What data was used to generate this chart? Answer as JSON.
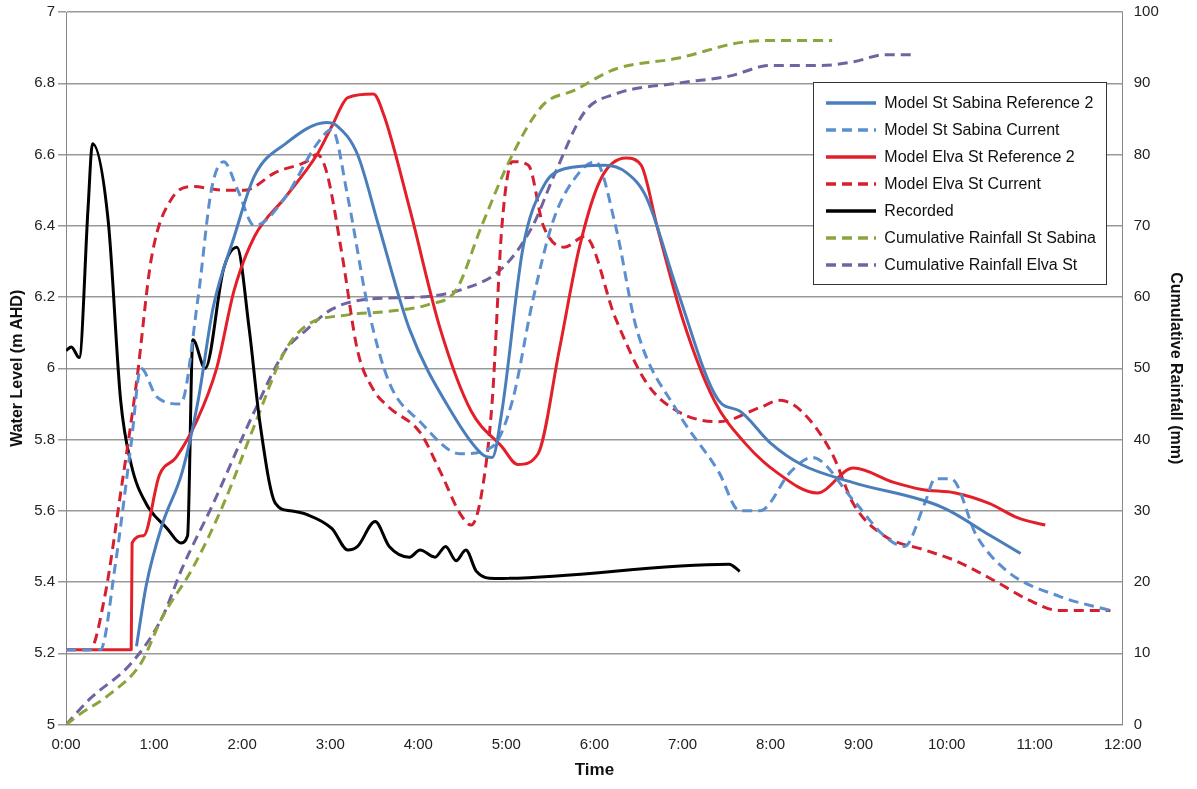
{
  "chart_data": {
    "type": "line",
    "xlabel": "Time",
    "ylabel": "Water Level (m AHD)",
    "y2label": "Cumulative Rainfall (mm)",
    "xlim": [
      0,
      12
    ],
    "xticks": [
      {
        "value": 0,
        "label": "0:00"
      },
      {
        "value": 1,
        "label": "1:00"
      },
      {
        "value": 2,
        "label": "2:00"
      },
      {
        "value": 3,
        "label": "3:00"
      },
      {
        "value": 4,
        "label": "4:00"
      },
      {
        "value": 5,
        "label": "5:00"
      },
      {
        "value": 6,
        "label": "6:00"
      },
      {
        "value": 7,
        "label": "7:00"
      },
      {
        "value": 8,
        "label": "8:00"
      },
      {
        "value": 9,
        "label": "9:00"
      },
      {
        "value": 10,
        "label": "10:00"
      },
      {
        "value": 11,
        "label": "11:00"
      },
      {
        "value": 12,
        "label": "12:00"
      }
    ],
    "ylim": [
      5,
      7
    ],
    "yticks": [
      5,
      5.2,
      5.4,
      5.6,
      5.8,
      6,
      6.2,
      6.4,
      6.6,
      6.8,
      7
    ],
    "y2lim": [
      0,
      100
    ],
    "y2ticks": [
      0,
      10,
      20,
      30,
      40,
      50,
      60,
      70,
      80,
      90,
      100
    ],
    "grid": "y",
    "legend": "top right",
    "marker": "none",
    "series": [
      {
        "name": "Model St Sabina Reference 2",
        "color": "#4a7ebb",
        "line_style": "solid",
        "x": [
          0.8,
          0.91,
          1.09,
          1.32,
          1.5,
          1.67,
          1.91,
          2.14,
          2.49,
          2.96,
          3.08,
          3.31,
          3.55,
          3.9,
          4.37,
          4.72,
          4.84,
          4.95,
          5.19,
          5.42,
          5.66,
          6.12,
          6.36,
          6.59,
          6.94,
          7.41,
          7.65,
          8.0,
          8.35,
          8.93,
          9.95,
          10.5,
          10.84
        ],
        "values": [
          5.22,
          5.39,
          5.56,
          5.71,
          5.91,
          6.17,
          6.37,
          6.54,
          6.63,
          6.69,
          6.68,
          6.6,
          6.4,
          6.11,
          5.88,
          5.76,
          5.75,
          5.88,
          6.34,
          6.51,
          6.56,
          6.57,
          6.55,
          6.48,
          6.22,
          5.91,
          5.88,
          5.79,
          5.73,
          5.68,
          5.61,
          5.53,
          5.48
        ]
      },
      {
        "name": "Model St Sabina Current",
        "color": "#5b8fd0",
        "line_style": "dashed",
        "x": [
          0,
          0.39,
          0.56,
          0.74,
          0.85,
          1.03,
          1.3,
          1.5,
          1.65,
          1.79,
          1.95,
          2.14,
          2.49,
          2.85,
          3.02,
          3.2,
          3.43,
          3.67,
          4.02,
          4.48,
          4.84,
          5.07,
          5.3,
          5.54,
          5.83,
          6.01,
          6.24,
          6.48,
          6.94,
          7.41,
          7.65,
          7.88,
          8.23,
          8.47,
          8.94,
          9.29,
          9.52,
          9.75,
          9.87,
          10.05,
          10.34,
          10.69,
          11.28,
          11.86
        ],
        "values": [
          5.21,
          5.21,
          5.45,
          5.79,
          6.0,
          5.92,
          5.9,
          6.2,
          6.5,
          6.58,
          6.5,
          6.4,
          6.48,
          6.63,
          6.67,
          6.48,
          6.17,
          5.96,
          5.85,
          5.76,
          5.78,
          5.91,
          6.19,
          6.42,
          6.55,
          6.58,
          6.4,
          6.11,
          5.88,
          5.71,
          5.6,
          5.6,
          5.71,
          5.75,
          5.63,
          5.53,
          5.5,
          5.62,
          5.69,
          5.69,
          5.53,
          5.43,
          5.36,
          5.32
        ]
      },
      {
        "name": "Model Elva St Reference 2",
        "color": "#e3202a",
        "line_style": "solid",
        "x": [
          0,
          0.74,
          0.75,
          0.88,
          1.06,
          1.25,
          1.48,
          1.71,
          1.91,
          2.14,
          2.49,
          2.85,
          3.02,
          3.2,
          3.49,
          3.61,
          3.9,
          4.25,
          4.6,
          4.95,
          5.13,
          5.36,
          5.6,
          5.83,
          6.07,
          6.36,
          6.53,
          6.71,
          7.0,
          7.36,
          7.71,
          8.06,
          8.53,
          8.94,
          9.4,
          9.72,
          10.1,
          10.49,
          10.81,
          11.12
        ],
        "values": [
          5.21,
          5.21,
          5.51,
          5.53,
          5.7,
          5.75,
          5.85,
          6.0,
          6.22,
          6.37,
          6.48,
          6.6,
          6.68,
          6.76,
          6.77,
          6.71,
          6.45,
          6.11,
          5.88,
          5.78,
          5.73,
          5.76,
          6.05,
          6.34,
          6.53,
          6.59,
          6.57,
          6.4,
          6.14,
          5.91,
          5.79,
          5.71,
          5.65,
          5.72,
          5.68,
          5.66,
          5.65,
          5.62,
          5.58,
          5.56
        ]
      },
      {
        "name": "Model Elva St Current",
        "color": "#d42030",
        "line_style": "dashed",
        "x": [
          0,
          0.27,
          0.44,
          0.62,
          0.8,
          0.97,
          1.21,
          1.44,
          1.79,
          2.03,
          2.38,
          2.73,
          2.85,
          2.96,
          3.14,
          3.31,
          3.49,
          3.67,
          4.02,
          4.25,
          4.48,
          4.6,
          4.72,
          4.84,
          4.95,
          5.07,
          5.25,
          5.42,
          5.66,
          5.89,
          6.24,
          6.59,
          6.94,
          7.41,
          7.88,
          8.11,
          8.35,
          8.7,
          8.94,
          9.29,
          9.75,
          10.1,
          10.57,
          10.93,
          11.28,
          11.86
        ],
        "values": [
          5.21,
          5.21,
          5.36,
          5.65,
          5.96,
          6.31,
          6.48,
          6.51,
          6.5,
          6.5,
          6.55,
          6.58,
          6.6,
          6.55,
          6.31,
          6.05,
          5.94,
          5.89,
          5.82,
          5.71,
          5.59,
          5.56,
          5.65,
          5.91,
          6.4,
          6.58,
          6.57,
          6.4,
          6.34,
          6.37,
          6.14,
          5.96,
          5.88,
          5.85,
          5.89,
          5.91,
          5.88,
          5.76,
          5.62,
          5.53,
          5.49,
          5.46,
          5.4,
          5.35,
          5.32,
          5.32
        ]
      },
      {
        "name": "Recorded",
        "color": "#000000",
        "line_style": "solid",
        "x": [
          0,
          0.06,
          0.15,
          0.25,
          0.3,
          0.48,
          0.62,
          0.74,
          0.91,
          1.15,
          1.3,
          1.38,
          1.44,
          1.58,
          1.79,
          1.94,
          2.08,
          2.2,
          2.38,
          2.55,
          2.73,
          3.02,
          3.2,
          3.31,
          3.51,
          3.67,
          3.9,
          4.02,
          4.19,
          4.31,
          4.43,
          4.54,
          4.66,
          4.87,
          7.53,
          7.65
        ],
        "values": [
          6.05,
          6.06,
          6.03,
          6.45,
          6.63,
          6.41,
          5.91,
          5.73,
          5.62,
          5.55,
          5.51,
          5.53,
          6.08,
          6.0,
          6.28,
          6.34,
          6.11,
          5.85,
          5.62,
          5.6,
          5.59,
          5.55,
          5.49,
          5.5,
          5.57,
          5.5,
          5.47,
          5.49,
          5.47,
          5.5,
          5.46,
          5.49,
          5.43,
          5.41,
          5.45,
          5.43
        ]
      },
      {
        "name": "Cumulative Rainfall St Sabina",
        "color": "#8aa53c",
        "line_style": "dashed",
        "axis": "y2",
        "x": [
          0,
          0.15,
          0.5,
          0.85,
          1.09,
          1.44,
          1.79,
          2.14,
          2.49,
          2.73,
          3.2,
          3.67,
          4.13,
          4.43,
          4.72,
          5.07,
          5.42,
          5.77,
          6.24,
          6.94,
          7.65,
          8.0,
          8.7
        ],
        "values": [
          0,
          1.4,
          4.3,
          8.6,
          15,
          22,
          31,
          42,
          52.5,
          56,
          57.5,
          58,
          59,
          61,
          70,
          80,
          87,
          89,
          92,
          93.5,
          95.7,
          96,
          96
        ]
      },
      {
        "name": "Cumulative Rainfall Elva St",
        "color": "#7064a0",
        "line_style": "dashed",
        "axis": "y2",
        "x": [
          0,
          0.27,
          0.74,
          1.09,
          1.32,
          1.67,
          2.14,
          2.49,
          2.73,
          3.02,
          3.43,
          4.02,
          4.48,
          4.95,
          5.3,
          5.54,
          5.89,
          6.24,
          6.94,
          7.53,
          8.0,
          8.58,
          8.94,
          9.29,
          9.64
        ],
        "values": [
          0,
          3.6,
          8.6,
          15,
          22,
          31,
          44,
          52.5,
          55.4,
          58.3,
          59.7,
          60,
          61,
          64,
          70,
          77,
          86,
          88.5,
          90,
          91,
          92.5,
          92.5,
          93,
          94,
          94
        ]
      }
    ]
  }
}
